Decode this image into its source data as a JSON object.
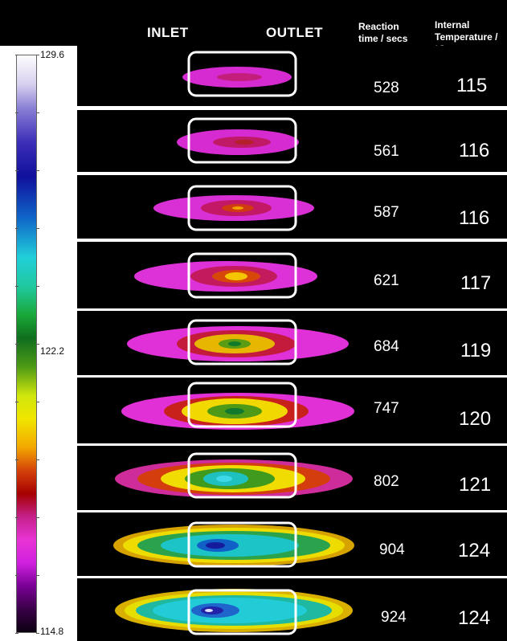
{
  "header": {
    "inlet": "INLET",
    "outlet": "OUTLET",
    "reaction_time_label": "Reaction time / secs",
    "internal_temperature_label": "Internal Temperature / °C"
  },
  "scale": {
    "max": "129.6",
    "mid": "122.2",
    "min": "114.8"
  },
  "frames": [
    {
      "reaction_time": "528",
      "temperature": "115"
    },
    {
      "reaction_time": "561",
      "temperature": "116"
    },
    {
      "reaction_time": "587",
      "temperature": "116"
    },
    {
      "reaction_time": "621",
      "temperature": "117"
    },
    {
      "reaction_time": "684",
      "temperature": "119"
    },
    {
      "reaction_time": "747",
      "temperature": "120"
    },
    {
      "reaction_time": "802",
      "temperature": "121"
    },
    {
      "reaction_time": "904",
      "temperature": "124"
    },
    {
      "reaction_time": "924",
      "temperature": "124"
    }
  ]
}
